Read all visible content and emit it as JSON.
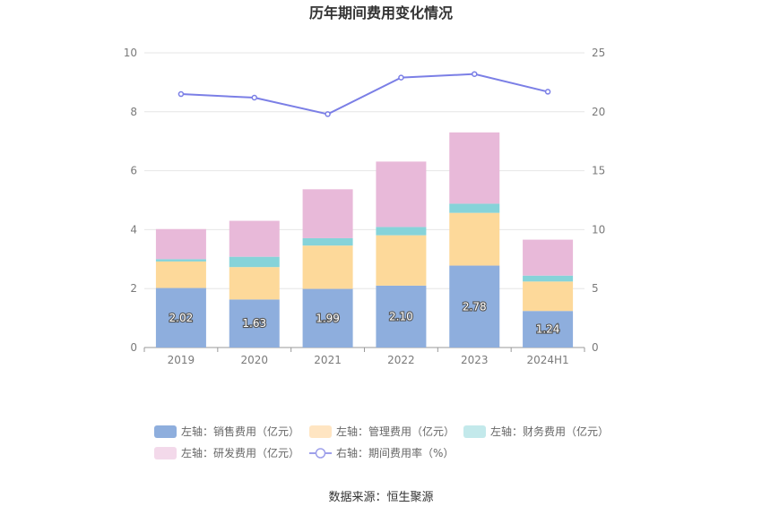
{
  "chart_data": {
    "type": "bar",
    "stacked": true,
    "title": "历年期间费用变化情况",
    "categories": [
      "2019",
      "2020",
      "2021",
      "2022",
      "2023",
      "2024H1"
    ],
    "left_axis": {
      "min": 0,
      "max": 10,
      "ticks": [
        0,
        2,
        4,
        6,
        8,
        10
      ]
    },
    "right_axis": {
      "min": 0,
      "max": 25,
      "ticks": [
        0,
        5,
        10,
        15,
        20,
        25
      ]
    },
    "series": [
      {
        "name": "左轴：销售费用（亿元）",
        "axis": "left",
        "kind": "bar",
        "color": "#8eaedd",
        "values": [
          2.02,
          1.63,
          1.99,
          2.1,
          2.78,
          1.24
        ],
        "show_labels": true
      },
      {
        "name": "左轴：管理费用（亿元）",
        "axis": "left",
        "kind": "bar",
        "color": "#fdd99a",
        "values": [
          0.9,
          1.1,
          1.47,
          1.71,
          1.79,
          1.0
        ]
      },
      {
        "name": "左轴：财务费用（亿元）",
        "axis": "left",
        "kind": "bar",
        "color": "#86d3d9",
        "values": [
          0.08,
          0.35,
          0.25,
          0.28,
          0.31,
          0.2
        ]
      },
      {
        "name": "左轴：研发费用（亿元）",
        "axis": "left",
        "kind": "bar",
        "color": "#e8b9d9",
        "values": [
          1.02,
          1.22,
          1.66,
          2.22,
          2.42,
          1.22
        ]
      },
      {
        "name": "右轴：期间费用率（%）",
        "axis": "right",
        "kind": "line",
        "color": "#7b7fe6",
        "values": [
          21.5,
          21.2,
          19.8,
          22.9,
          23.2,
          21.7
        ]
      }
    ],
    "legend_colors": [
      "#8eaedd",
      "#ffe5c2",
      "#c3e9eb",
      "#f3d9ea",
      "#9d9fea"
    ],
    "grid": true,
    "legend_position": "bottom"
  },
  "source": "数据来源：恒生聚源"
}
